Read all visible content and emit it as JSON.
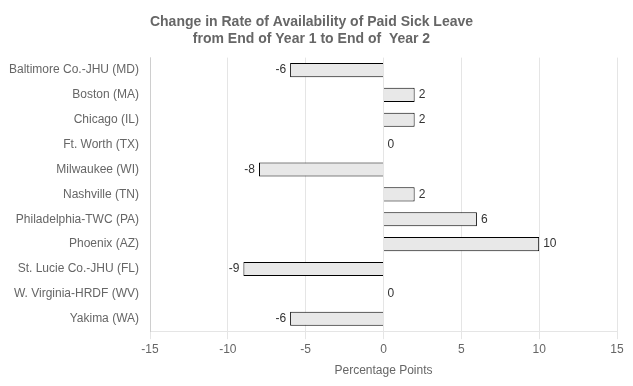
{
  "chart_data": {
    "type": "bar",
    "orientation": "horizontal",
    "title": "Change in Rate of Availability of Paid Sick Leave\nfrom End of Year 1 to End of  Year 2",
    "x_label": "Percentage Points",
    "categories": [
      "Baltimore Co.-JHU (MD)",
      "Boston (MA)",
      "Chicago (IL)",
      "Ft. Worth (TX)",
      "Milwaukee (WI)",
      "Nashville (TN)",
      "Philadelphia-TWC (PA)",
      "Phoenix (AZ)",
      "St. Lucie Co.-JHU (FL)",
      "W. Virginia-HRDF (WV)",
      "Yakima (WA)"
    ],
    "values": [
      -6,
      2,
      2,
      0,
      -8,
      2,
      6,
      10,
      -9,
      0,
      -6
    ],
    "color": "#e8e8e8",
    "xlim": [
      -15,
      15
    ],
    "xticks": [
      -15,
      -10,
      -5,
      0,
      5,
      10,
      15
    ],
    "grid": true,
    "data_labels": true
  }
}
